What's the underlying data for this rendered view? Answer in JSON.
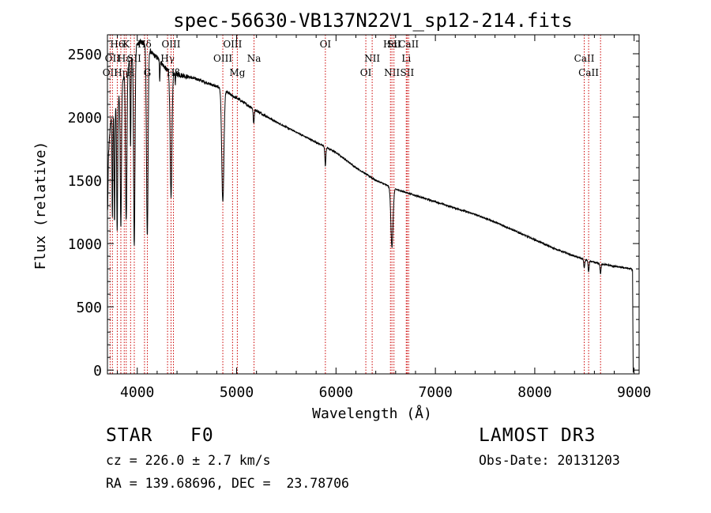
{
  "chart_data": {
    "type": "line",
    "title": "spec-56630-VB137N22V1_sp12-214.fits",
    "xlabel": "Wavelength (Å)",
    "ylabel": "Flux (relative)",
    "xlim": [
      3700,
      9050
    ],
    "ylim": [
      -30,
      2650
    ],
    "x_ticks": [
      4000,
      5000,
      6000,
      7000,
      8000,
      9000
    ],
    "x_tick_labels": [
      "4000",
      "5000",
      "6000",
      "7000",
      "8000",
      "9000"
    ],
    "y_ticks": [
      0,
      500,
      1000,
      1500,
      2000,
      2500
    ],
    "y_tick_labels": [
      "0",
      "500",
      "1000",
      "1500",
      "2000",
      "2500"
    ],
    "continuum": [
      [
        3700,
        1150
      ],
      [
        3710,
        1700
      ],
      [
        3730,
        1950
      ],
      [
        3760,
        2050
      ],
      [
        3800,
        2100
      ],
      [
        3840,
        2250
      ],
      [
        3880,
        2350
      ],
      [
        3930,
        2450
      ],
      [
        3980,
        2550
      ],
      [
        4030,
        2600
      ],
      [
        4060,
        2580
      ],
      [
        4100,
        2560
      ],
      [
        4150,
        2500
      ],
      [
        4200,
        2470
      ],
      [
        4250,
        2420
      ],
      [
        4300,
        2370
      ],
      [
        4400,
        2340
      ],
      [
        4500,
        2320
      ],
      [
        4600,
        2300
      ],
      [
        4700,
        2270
      ],
      [
        4800,
        2240
      ],
      [
        4860,
        2230
      ],
      [
        4900,
        2200
      ],
      [
        4950,
        2170
      ],
      [
        5000,
        2150
      ],
      [
        5100,
        2100
      ],
      [
        5200,
        2050
      ],
      [
        5400,
        1960
      ],
      [
        5600,
        1880
      ],
      [
        5800,
        1800
      ],
      [
        6000,
        1720
      ],
      [
        6200,
        1600
      ],
      [
        6400,
        1500
      ],
      [
        6600,
        1430
      ],
      [
        6800,
        1380
      ],
      [
        7000,
        1330
      ],
      [
        7200,
        1280
      ],
      [
        7400,
        1230
      ],
      [
        7600,
        1170
      ],
      [
        7800,
        1100
      ],
      [
        8000,
        1030
      ],
      [
        8200,
        960
      ],
      [
        8400,
        900
      ],
      [
        8600,
        850
      ],
      [
        8800,
        820
      ],
      [
        8970,
        800
      ],
      [
        8985,
        790
      ]
    ],
    "absorption": [
      {
        "center": 3750,
        "width": 4,
        "depth": 800
      },
      {
        "center": 3771,
        "width": 4,
        "depth": 900
      },
      {
        "center": 3798,
        "width": 5,
        "depth": 1000
      },
      {
        "center": 3835,
        "width": 6,
        "depth": 1100
      },
      {
        "center": 3889,
        "width": 7,
        "depth": 1200
      },
      {
        "center": 3933,
        "width": 4,
        "depth": 700
      },
      {
        "center": 3970,
        "width": 7,
        "depth": 1550
      },
      {
        "center": 4101,
        "width": 8,
        "depth": 1500
      },
      {
        "center": 4226,
        "width": 3,
        "depth": 150
      },
      {
        "center": 4340,
        "width": 9,
        "depth": 1000
      },
      {
        "center": 4383,
        "width": 3,
        "depth": 80
      },
      {
        "center": 4861,
        "width": 11,
        "depth": 900
      },
      {
        "center": 5172,
        "width": 5,
        "depth": 120
      },
      {
        "center": 5893,
        "width": 5,
        "depth": 150
      },
      {
        "center": 6563,
        "width": 11,
        "depth": 470
      },
      {
        "center": 8498,
        "width": 5,
        "depth": 70
      },
      {
        "center": 8542,
        "width": 5,
        "depth": 90
      },
      {
        "center": 8662,
        "width": 5,
        "depth": 80
      }
    ],
    "line_markers": [
      {
        "x": 3727,
        "label": "OII",
        "row": 2
      },
      {
        "x": 3750,
        "label": "OII",
        "row": 1
      },
      {
        "x": 3799,
        "label": "H6",
        "row": 0
      },
      {
        "x": 3835,
        "label": "Hη",
        "row": 2
      },
      {
        "x": 3869,
        "label": "Hε",
        "row": 1
      },
      {
        "x": 3889,
        "label": "K",
        "row": 0
      },
      {
        "x": 3933,
        "label": "H",
        "row": 2
      },
      {
        "x": 3970,
        "label": "SII",
        "row": 1
      },
      {
        "x": 4073,
        "label": "Hδ",
        "row": 0
      },
      {
        "x": 4102,
        "label": "G",
        "row": 2
      },
      {
        "x": 4305,
        "label": "Hγ",
        "row": 1
      },
      {
        "x": 4340,
        "label": "OIII",
        "row": 0
      },
      {
        "x": 4364,
        "label": "Hβ",
        "row": 2
      },
      {
        "x": 4861,
        "label": "OIII",
        "row": 1
      },
      {
        "x": 4959,
        "label": "OIII",
        "row": 0
      },
      {
        "x": 5007,
        "label": "Mg",
        "row": 2
      },
      {
        "x": 5175,
        "label": "Na",
        "row": 1
      },
      {
        "x": 5893,
        "label": "OI",
        "row": 0
      },
      {
        "x": 6300,
        "label": "OI",
        "row": 2
      },
      {
        "x": 6364,
        "label": "NII",
        "row": 1
      },
      {
        "x": 6548,
        "label": "Hα",
        "row": 0
      },
      {
        "x": 6563,
        "label": "NII",
        "row": 2
      },
      {
        "x": 6583,
        "label": "SII",
        "row": 0
      },
      {
        "x": 6707,
        "label": "Li",
        "row": 1
      },
      {
        "x": 6716,
        "label": "SII",
        "row": 2
      },
      {
        "x": 6731,
        "label": "CaII",
        "row": 0
      },
      {
        "x": 8498,
        "label": "CaII",
        "row": 1
      },
      {
        "x": 8542,
        "label": "CaII",
        "row": 2
      },
      {
        "x": 8662,
        "label": "",
        "row": 0
      }
    ]
  },
  "info": {
    "object_class": "STAR",
    "subclass": "F0",
    "redshift": "cz = 226.0 ± 2.7 km/s",
    "coords": "RA = 139.68696, DEC =  23.78706",
    "survey": "LAMOST DR3",
    "obs_date": "Obs-Date: 20131203"
  }
}
